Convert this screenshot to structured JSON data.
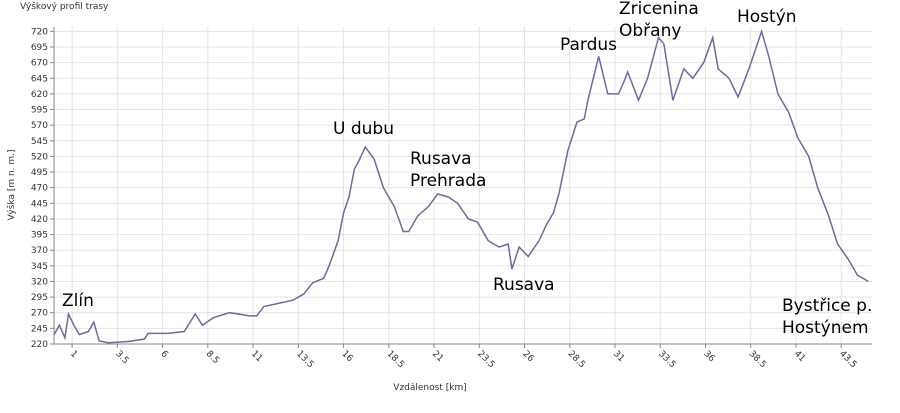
{
  "chart_data": {
    "type": "line",
    "title": "Výškový profil trasy",
    "x_label": "Vzdálenost [km]",
    "y_label": "Výška [m n. m.]",
    "x": [
      0,
      0.3,
      0.6,
      0.8,
      1.1,
      1.4,
      1.9,
      2.2,
      2.5,
      3.0,
      4.1,
      5.0,
      5.2,
      6.3,
      7.2,
      7.8,
      8.2,
      8.8,
      9.7,
      10.2,
      10.8,
      11.2,
      11.6,
      12.4,
      13.2,
      13.8,
      14.3,
      14.9,
      15.2,
      15.7,
      16.0,
      16.3,
      16.6,
      16.8,
      17.2,
      17.7,
      18.2,
      18.8,
      19.3,
      19.6,
      20.1,
      20.7,
      21.2,
      21.8,
      22.3,
      22.9,
      23.4,
      24.0,
      24.6,
      25.1,
      25.3,
      25.7,
      26.2,
      26.8,
      27.2,
      27.6,
      27.9,
      28.4,
      28.9,
      29.3,
      29.5,
      30.1,
      30.6,
      31.2,
      31.5,
      31.7,
      32.3,
      32.8,
      33.4,
      33.7,
      34.2,
      34.8,
      35.3,
      35.9,
      36.4,
      36.7,
      37.3,
      37.8,
      38.4,
      39.1,
      39.5,
      40.0,
      40.6,
      41.1,
      41.7,
      42.2,
      42.8,
      43.3,
      43.9,
      44.4,
      45.0
    ],
    "series": [
      {
        "name": "Výška",
        "color": "#6b6b9c",
        "values": [
          235,
          250,
          230,
          268,
          250,
          235,
          240,
          255,
          225,
          222,
          224,
          228,
          237,
          237,
          240,
          268,
          250,
          262,
          270,
          268,
          265,
          265,
          280,
          285,
          290,
          300,
          318,
          325,
          345,
          385,
          430,
          455,
          500,
          510,
          535,
          515,
          470,
          440,
          400,
          400,
          425,
          440,
          460,
          455,
          445,
          420,
          415,
          385,
          375,
          380,
          340,
          375,
          360,
          385,
          410,
          430,
          460,
          530,
          575,
          580,
          610,
          680,
          620,
          620,
          640,
          655,
          610,
          645,
          710,
          700,
          610,
          660,
          645,
          670,
          710,
          660,
          645,
          615,
          660,
          720,
          680,
          620,
          590,
          550,
          520,
          470,
          425,
          380,
          355,
          330,
          320
        ]
      }
    ],
    "xlim": [
      0,
      45.2
    ],
    "ylim": [
      220,
      727
    ],
    "xticks": [
      1,
      3.5,
      6,
      8.5,
      11,
      13.5,
      16,
      18.5,
      21,
      23.5,
      26,
      28.5,
      31,
      33.5,
      36,
      38.5,
      41,
      43.5
    ],
    "yticks": [
      220,
      245,
      270,
      295,
      320,
      345,
      370,
      395,
      420,
      445,
      470,
      495,
      520,
      545,
      570,
      595,
      620,
      645,
      670,
      695,
      720
    ],
    "grid": true,
    "annotations": [
      [
        "Zlín"
      ],
      [
        "U dubu"
      ],
      [
        "Rusava",
        "Prehrada"
      ],
      [
        "Rusava"
      ],
      [
        "Pardus"
      ],
      [
        "Zricenina",
        "Obřany"
      ],
      [
        "Hostýn"
      ],
      [
        "Bystřice p.",
        "Hostýnem"
      ]
    ]
  }
}
